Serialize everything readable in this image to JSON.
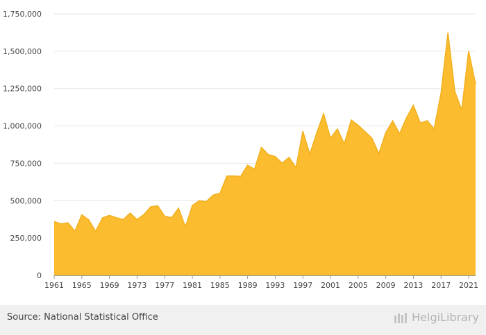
{
  "chart_data": {
    "type": "area",
    "title": "",
    "xlabel": "",
    "ylabel": "",
    "x": [
      1961,
      1962,
      1963,
      1964,
      1965,
      1966,
      1967,
      1968,
      1969,
      1970,
      1971,
      1972,
      1973,
      1974,
      1975,
      1976,
      1977,
      1978,
      1979,
      1980,
      1981,
      1982,
      1983,
      1984,
      1985,
      1986,
      1987,
      1988,
      1989,
      1990,
      1991,
      1992,
      1993,
      1994,
      1995,
      1996,
      1997,
      1998,
      1999,
      2000,
      2001,
      2002,
      2003,
      2004,
      2005,
      2006,
      2007,
      2008,
      2009,
      2010,
      2011,
      2012,
      2013,
      2014,
      2015,
      2016,
      2017,
      2018,
      2019,
      2020,
      2021,
      2022
    ],
    "series": [
      {
        "values": [
          360000,
          345000,
          352000,
          295000,
          405000,
          372000,
          295000,
          385000,
          402000,
          386000,
          373000,
          417000,
          373000,
          408000,
          460000,
          465000,
          396000,
          386000,
          450000,
          325000,
          467000,
          500000,
          493000,
          537000,
          550000,
          665000,
          665000,
          663000,
          737000,
          710000,
          857000,
          808000,
          795000,
          751000,
          790000,
          722000,
          965000,
          812000,
          952000,
          1082000,
          918000,
          980000,
          880000,
          1040000,
          1005000,
          962000,
          918000,
          815000,
          955000,
          1035000,
          948000,
          1055000,
          1138000,
          1020000,
          1035000,
          980000,
          1220000,
          1625000,
          1230000,
          1108000,
          1502000,
          1280000
        ]
      }
    ],
    "xlim": [
      1961,
      2022
    ],
    "ylim": [
      0,
      1750000
    ],
    "y_ticks": [
      "0",
      "250,000",
      "500,000",
      "750,000",
      "1,000,000",
      "1,250,000",
      "1,500,000",
      "1,750,000"
    ],
    "x_ticks": [
      "1961",
      "1965",
      "1969",
      "1973",
      "1977",
      "1981",
      "1985",
      "1989",
      "1993",
      "1997",
      "2001",
      "2005",
      "2009",
      "2013",
      "2017",
      "2021"
    ],
    "grid": true,
    "fill_color": "#fbbc30",
    "line_color": "#f2b01e",
    "grid_color": "#e6e6e6"
  },
  "footer": {
    "source": "Source: National Statistical Office",
    "brand": "HelgiLibrary"
  }
}
